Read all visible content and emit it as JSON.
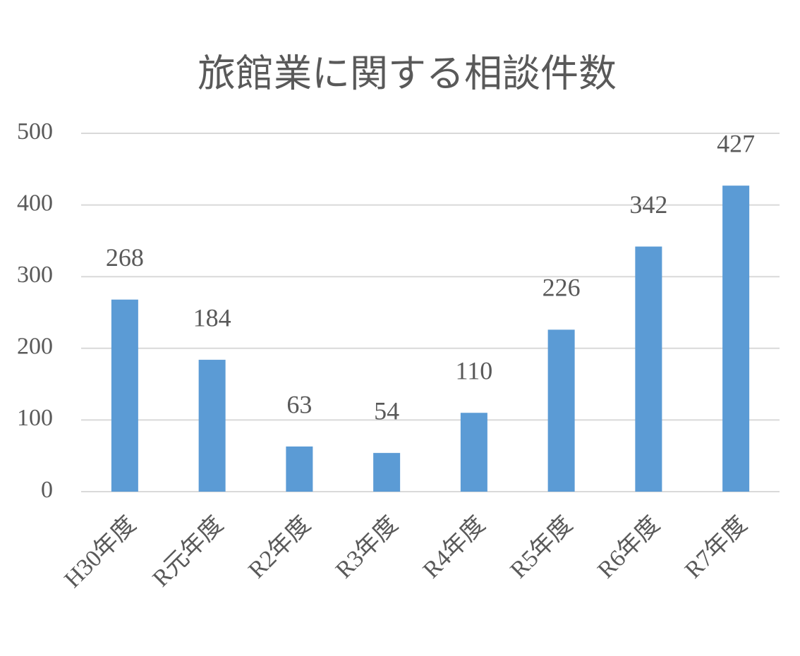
{
  "chart_data": {
    "type": "bar",
    "title": "旅館業に関する相談件数",
    "categories": [
      "H30年度",
      "R元年度",
      "R2年度",
      "R3年度",
      "R4年度",
      "R5年度",
      "R6年度",
      "R7年度"
    ],
    "values": [
      268,
      184,
      63,
      54,
      110,
      226,
      342,
      427
    ],
    "color": "#5b9bd5",
    "ylim": [
      0,
      500
    ],
    "yticks": [
      0,
      100,
      200,
      300,
      400,
      500
    ],
    "grid": true
  }
}
